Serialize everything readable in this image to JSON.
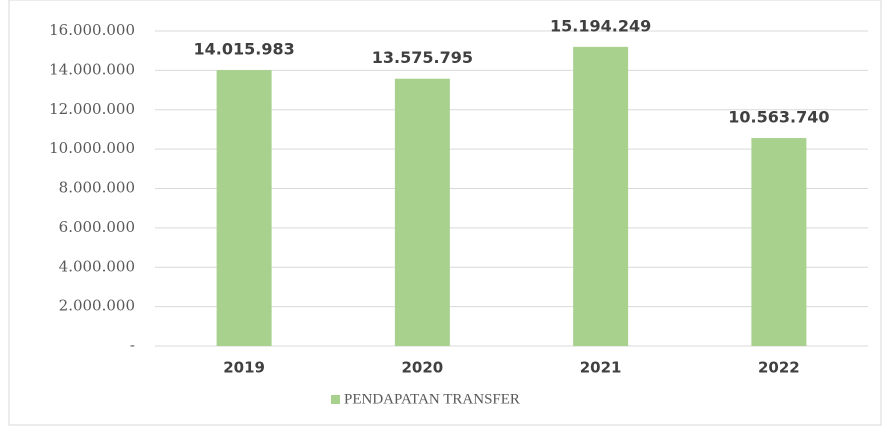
{
  "chart_data": {
    "type": "bar",
    "categories": [
      "2019",
      "2020",
      "2021",
      "2022"
    ],
    "series": [
      {
        "name": "PENDAPATAN TRANSFER",
        "color": "#a9d18e",
        "values": [
          14015983,
          13575795,
          15194249,
          10563740
        ],
        "value_labels": [
          "14.015.983",
          "13.575.795",
          "15.194.249",
          "10.563.740"
        ]
      }
    ],
    "ylim": [
      0,
      16000000
    ],
    "yticks": [
      {
        "value": 0,
        "label": "-"
      },
      {
        "value": 2000000,
        "label": "2.000.000"
      },
      {
        "value": 4000000,
        "label": "4.000.000"
      },
      {
        "value": 6000000,
        "label": "6.000.000"
      },
      {
        "value": 8000000,
        "label": "8.000.000"
      },
      {
        "value": 10000000,
        "label": "10.000.000"
      },
      {
        "value": 12000000,
        "label": "12.000.000"
      },
      {
        "value": 14000000,
        "label": "14.000.000"
      },
      {
        "value": 16000000,
        "label": "16.000.000"
      }
    ],
    "grid": true,
    "legend": "bottom"
  }
}
